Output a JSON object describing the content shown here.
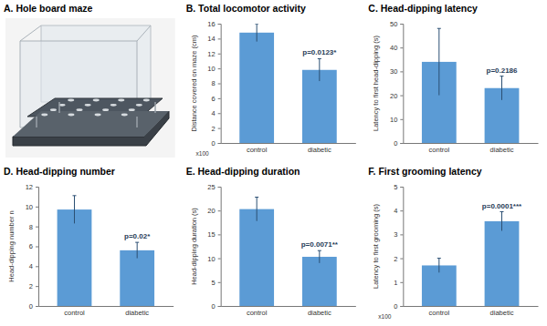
{
  "image_panel": {
    "title": "A. Hole board maze"
  },
  "chart_data": [
    {
      "type": "bar",
      "title": "B. Total locomotor activity",
      "ylabel": "Distance covered on maze (cm)",
      "y_multiplier": "x100",
      "categories": [
        "control",
        "diabetic"
      ],
      "values": [
        14.8,
        9.8
      ],
      "errors": [
        1.2,
        1.5
      ],
      "color": "#5b9bd5",
      "ylim": [
        0,
        16
      ],
      "yticks": [
        0,
        2,
        4,
        6,
        8,
        10,
        12,
        14,
        16
      ],
      "annotations": [
        {
          "text": "p=0.0123*",
          "category": "diabetic"
        }
      ]
    },
    {
      "type": "bar",
      "title": "C. Head-dipping latency",
      "ylabel": "Latency to first head-dipping (s)",
      "categories": [
        "control",
        "diabetic"
      ],
      "values": [
        34,
        23
      ],
      "errors": [
        14,
        5
      ],
      "color": "#5b9bd5",
      "ylim": [
        0,
        50
      ],
      "yticks": [
        0,
        10,
        20,
        30,
        40,
        50
      ],
      "annotations": [
        {
          "text": "p=0.2186",
          "category": "diabetic"
        }
      ]
    },
    {
      "type": "bar",
      "title": "D. Head-dipping number",
      "ylabel": "Head-dipping number n",
      "categories": [
        "control",
        "diabetic"
      ],
      "values": [
        9.7,
        5.6
      ],
      "errors": [
        1.4,
        0.8
      ],
      "color": "#5b9bd5",
      "ylim": [
        0,
        12
      ],
      "yticks": [
        0,
        2,
        4,
        6,
        8,
        10,
        12
      ],
      "annotations": [
        {
          "text": "p=0.02*",
          "category": "diabetic"
        }
      ]
    },
    {
      "type": "bar",
      "title": "E. Head-dipping duration",
      "ylabel": "Head-dipping duration (s)",
      "categories": [
        "control",
        "diabetic"
      ],
      "values": [
        20.3,
        10.3
      ],
      "errors": [
        2.5,
        1.3
      ],
      "color": "#5b9bd5",
      "ylim": [
        0,
        25
      ],
      "yticks": [
        0,
        5,
        10,
        15,
        20,
        25
      ],
      "annotations": [
        {
          "text": "p=0.0071**",
          "category": "diabetic"
        }
      ]
    },
    {
      "type": "bar",
      "title": "F. First grooming latency",
      "ylabel": "Latency to first grooming (s)",
      "y_multiplier": "x100",
      "categories": [
        "control",
        "diabetic"
      ],
      "values": [
        1.7,
        3.55
      ],
      "errors": [
        0.3,
        0.4
      ],
      "color": "#5b9bd5",
      "ylim": [
        0,
        5
      ],
      "yticks": [
        0,
        1,
        2,
        3,
        4,
        5
      ],
      "annotations": [
        {
          "text": "p=0.0001***",
          "category": "diabetic"
        }
      ]
    }
  ]
}
